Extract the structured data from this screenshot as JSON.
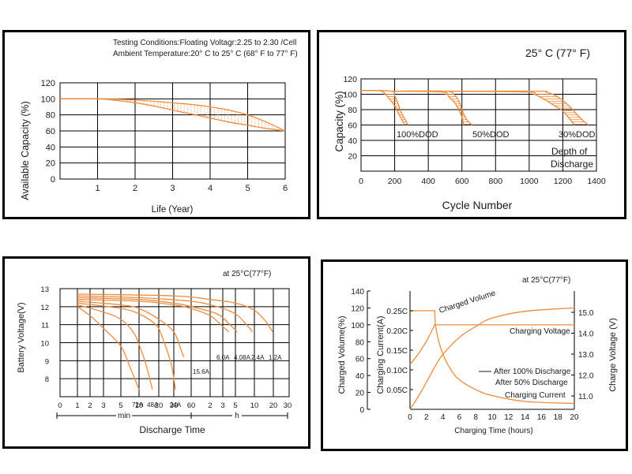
{
  "chart_data": [
    {
      "type": "line",
      "notes": [
        "Testing Conditions:Floating Voltagr:2.25 to 2.30  /Cell",
        "Ambient Temperature:20° C to 25° C (68° F to 77° F)"
      ],
      "xlabel": "Life (Year)",
      "ylabel": "Available Capacity (%)",
      "xlim": [
        0,
        6
      ],
      "ylim": [
        0,
        120
      ],
      "xticks": [
        "1",
        "2",
        "3",
        "4",
        "5",
        "6"
      ],
      "yticks": [
        "0",
        "20",
        "40",
        "60",
        "80",
        "100",
        "120"
      ],
      "grid": true,
      "series": [
        {
          "x": [
            0,
            1,
            1.5,
            2,
            2.5,
            3,
            3.5,
            4,
            4.5,
            5,
            5.5,
            6
          ],
          "y": [
            100,
            100,
            99.5,
            98.5,
            97,
            95,
            93,
            90,
            86,
            80,
            71,
            60
          ]
        },
        {
          "x": [
            0,
            1,
            1.5,
            2,
            2.5,
            3,
            3.5,
            4,
            4.5,
            5,
            5.5,
            6
          ],
          "y": [
            100,
            100,
            98,
            95,
            91,
            86,
            81,
            76,
            71,
            67,
            63,
            60
          ]
        }
      ]
    },
    {
      "type": "line",
      "title": "25° C (77° F)",
      "xlabel": "Cycle Number",
      "ylabel": "Capacity   (%)",
      "xlim": [
        0,
        1400
      ],
      "ylim": [
        0,
        120
      ],
      "xticks": [
        "0",
        "200",
        "400",
        "600",
        "800",
        "1000",
        "1200",
        "1400"
      ],
      "yticks": [
        "20",
        "40",
        "60",
        "80",
        "100",
        "120"
      ],
      "grid": true,
      "annotations": [
        "100%DOD",
        "50%DOD",
        "30%DOD",
        "Depth of",
        "Discharge"
      ],
      "series": [
        {
          "x": [
            0,
            180,
            200,
            220,
            240,
            260,
            280
          ],
          "y": [
            105,
            104,
            98,
            88,
            76,
            68,
            60
          ]
        },
        {
          "x": [
            0,
            120,
            160,
            200,
            220,
            240,
            260
          ],
          "y": [
            105,
            104,
            96,
            85,
            76,
            68,
            60
          ]
        },
        {
          "x": [
            180,
            500,
            550,
            580,
            600,
            620,
            640,
            660
          ],
          "y": [
            104,
            104,
            100,
            92,
            80,
            70,
            64,
            60
          ]
        },
        {
          "x": [
            180,
            480,
            520,
            560,
            580,
            600,
            610
          ],
          "y": [
            104,
            103,
            97,
            88,
            80,
            70,
            60
          ]
        },
        {
          "x": [
            500,
            1050,
            1100,
            1150,
            1200,
            1250,
            1300,
            1350
          ],
          "y": [
            104,
            104,
            103,
            99,
            92,
            82,
            70,
            60
          ]
        },
        {
          "x": [
            500,
            980,
            1040,
            1100,
            1150,
            1200,
            1240,
            1270
          ],
          "y": [
            104,
            103,
            99,
            92,
            85,
            78,
            68,
            60
          ]
        }
      ]
    },
    {
      "type": "line",
      "title": "at 25°C(77°F)",
      "xlabel": "Discharge Time",
      "ylabel": "Battery Voltage(V)",
      "ylim": [
        7,
        13
      ],
      "xticks": [
        "0",
        "1",
        "2",
        "3",
        "5",
        "10",
        "20",
        "30",
        "60",
        "2",
        "3",
        "5",
        "10",
        "20",
        "30"
      ],
      "xunits": [
        "min",
        "h"
      ],
      "yticks": [
        "8",
        "9",
        "10",
        "11",
        "12",
        "13"
      ],
      "grid": true,
      "series": [
        {
          "name": "72A",
          "t_min": [
            1,
            2,
            3,
            5,
            7,
            9,
            10
          ],
          "v": [
            12.0,
            11.5,
            10.8,
            9.8,
            8.7,
            7.8,
            7.4
          ]
        },
        {
          "name": "48A",
          "t_min": [
            1,
            3,
            5,
            8,
            10,
            13,
            16
          ],
          "v": [
            12.1,
            11.7,
            11.3,
            10.6,
            9.9,
            8.7,
            7.4
          ]
        },
        {
          "name": "24A",
          "t_min": [
            1,
            5,
            10,
            18,
            22,
            28,
            32
          ],
          "v": [
            12.2,
            11.9,
            11.6,
            11.0,
            10.3,
            8.8,
            7.4
          ]
        },
        {
          "name": "15.6A",
          "t_min": [
            1,
            5,
            10,
            20,
            30,
            40,
            45
          ],
          "v": [
            12.3,
            12.1,
            11.9,
            11.3,
            10.6,
            9.6,
            9.2
          ]
        },
        {
          "name": "6.0A",
          "t_min": [
            1,
            10,
            30,
            60,
            120,
            180,
            230
          ],
          "v": [
            12.4,
            12.3,
            12.1,
            11.9,
            11.5,
            10.9,
            10.6
          ]
        },
        {
          "name": "4.08A",
          "t_min": [
            1,
            10,
            30,
            60,
            150,
            240,
            320
          ],
          "v": [
            12.5,
            12.4,
            12.2,
            12.0,
            11.6,
            11.0,
            10.6
          ]
        },
        {
          "name": "2.4A",
          "t_min": [
            1,
            10,
            60,
            150,
            300,
            450,
            560
          ],
          "v": [
            12.6,
            12.5,
            12.3,
            12.0,
            11.6,
            11.0,
            10.6
          ]
        },
        {
          "name": "1.2A",
          "t_min": [
            1,
            30,
            120,
            300,
            600,
            900,
            1170
          ],
          "v": [
            12.7,
            12.6,
            12.4,
            12.2,
            11.8,
            11.2,
            10.6
          ]
        }
      ]
    },
    {
      "type": "line",
      "title": "at 25°C(77°F)",
      "xlabel": "Charging Time (hours)",
      "ylabel_left_1": "Charged Volume(%)",
      "ylabel_left_2": "Charging Current(A)",
      "ylabel_right": "Charge Voltage (V)",
      "xlim": [
        0,
        20
      ],
      "xticks": [
        "0",
        "2",
        "4",
        "6",
        "8",
        "10",
        "12",
        "14",
        "16",
        "18",
        "20"
      ],
      "yticks_left_1": [
        "0",
        "20",
        "40",
        "60",
        "80",
        "100",
        "120",
        "140"
      ],
      "yticks_left_2": [
        "0.05C",
        "0.10C",
        "0.15C",
        "0.20C",
        "0.25C"
      ],
      "yticks_right": [
        "11.0",
        "12.0",
        "13.0",
        "14.0",
        "15.0"
      ],
      "grid": false,
      "annotations": [
        "Charged Volume",
        "Charging Voltage",
        "After 100% Discharge",
        "After 50% Discharge",
        "Charging Current"
      ],
      "series": [
        {
          "name": "Charged Volume",
          "unit": "%",
          "x": [
            0,
            1,
            2,
            3,
            4,
            6,
            8,
            10,
            14,
            20
          ],
          "y": [
            0,
            15,
            32,
            50,
            65,
            85,
            98,
            108,
            116,
            120
          ]
        },
        {
          "name": "Charging Voltage",
          "unit": "V",
          "x": [
            0,
            1,
            2,
            3,
            3.5,
            20
          ],
          "y": [
            12.5,
            13.0,
            13.6,
            14.4,
            14.4,
            14.4
          ]
        },
        {
          "name": "Charging Current",
          "unit": "C",
          "x": [
            0,
            3,
            3.2,
            4,
            5,
            6,
            8,
            10,
            14,
            20
          ],
          "y": [
            0.25,
            0.25,
            0.2,
            0.14,
            0.1,
            0.075,
            0.05,
            0.035,
            0.02,
            0.015
          ]
        }
      ]
    }
  ]
}
